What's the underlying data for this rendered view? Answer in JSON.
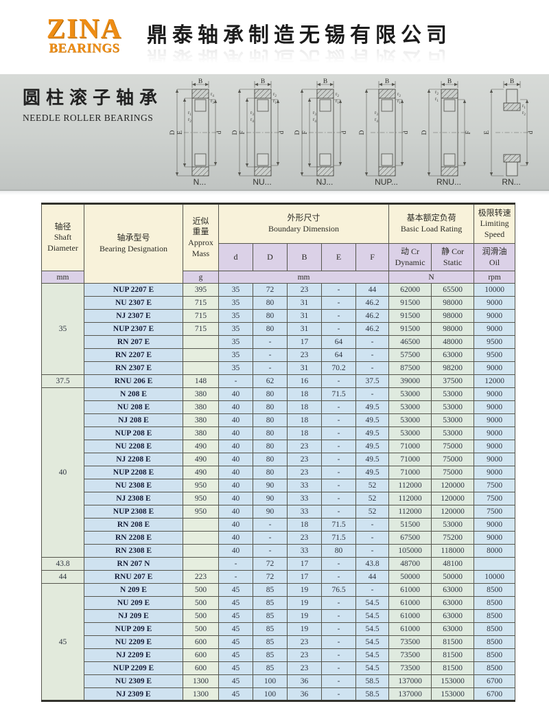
{
  "header": {
    "logo_line1": "ZINA",
    "logo_line2": "BEARINGS",
    "company_name": "鼎泰轴承制造无锡有限公司"
  },
  "banner": {
    "title_zh": "圆柱滚子轴承",
    "title_en": "NEEDLE ROLLER BEARINGS",
    "diagrams": [
      {
        "name": "N...",
        "style": "GEN",
        "top_label": "B",
        "left_labels": [
          "D",
          "E"
        ],
        "right_label": "d",
        "r_labels": [
          "r4",
          "r3",
          "r1",
          "r2"
        ]
      },
      {
        "name": "NU...",
        "style": "GEN",
        "top_label": "B",
        "left_labels": [
          "D",
          "F"
        ],
        "right_label": "d",
        "r_labels": [
          "r2",
          "r1",
          "r3",
          "r4"
        ]
      },
      {
        "name": "NJ...",
        "style": "GEN",
        "top_label": "B",
        "left_labels": [
          "D",
          "F"
        ],
        "right_label": "d",
        "r_labels": [
          "r2",
          "r1",
          "r3",
          "r4"
        ]
      },
      {
        "name": "NUP...",
        "style": "GEN",
        "top_label": "B",
        "left_labels": [
          "D"
        ],
        "right_label": "d",
        "r_labels": [
          "r2",
          "r1",
          "r3",
          "r4"
        ]
      },
      {
        "name": "RNU...",
        "style": "RNU",
        "top_label": "B",
        "left_labels": [
          "D"
        ],
        "right_label": "F",
        "r_labels": [
          "r2",
          "r1"
        ]
      },
      {
        "name": "RN...",
        "style": "RN",
        "top_label": "B",
        "left_labels": [
          "E"
        ],
        "right_label": "d",
        "r_labels": [
          "r1",
          "r2"
        ]
      }
    ]
  },
  "table": {
    "col_headers": {
      "shaft": "轴径\nShaft\nDiameter",
      "designation": "轴承型号\nBearing Designation",
      "mass": "近似\n重量\nApprox\nMass",
      "boundary": "外形尺寸\nBoundary Dimension",
      "load": "基本额定负荷\nBasic Load Rating",
      "speed": "极限转速\nLimiting\nSpeed",
      "dims": [
        "d",
        "D",
        "B",
        "E",
        "F"
      ],
      "dynamic": "动 Cr\nDynamic",
      "static": "静 Cor\nStatic",
      "oil": "润滑油\nOil"
    },
    "units": {
      "shaft": "mm",
      "mass": "g",
      "dims": "mm",
      "load": "N",
      "speed": "rpm"
    },
    "rows": [
      [
        "35",
        "NUP 2207 E",
        "395",
        "35",
        "72",
        "23",
        "-",
        "44",
        "62000",
        "65500",
        "10000"
      ],
      [
        "35",
        "NU 2307 E",
        "715",
        "35",
        "80",
        "31",
        "-",
        "46.2",
        "91500",
        "98000",
        "9000"
      ],
      [
        "35",
        "NJ 2307 E",
        "715",
        "35",
        "80",
        "31",
        "-",
        "46.2",
        "91500",
        "98000",
        "9000"
      ],
      [
        "35",
        "NUP 2307 E",
        "715",
        "35",
        "80",
        "31",
        "-",
        "46.2",
        "91500",
        "98000",
        "9000"
      ],
      [
        "35",
        "RN 207 E",
        "",
        "35",
        "-",
        "17",
        "64",
        "-",
        "46500",
        "48000",
        "9500"
      ],
      [
        "35",
        "RN 2207 E",
        "",
        "35",
        "-",
        "23",
        "64",
        "-",
        "57500",
        "63000",
        "9500"
      ],
      [
        "35",
        "RN 2307 E",
        "",
        "35",
        "-",
        "31",
        "70.2",
        "-",
        "87500",
        "98200",
        "9000"
      ],
      [
        "37.5",
        "RNU 206 E",
        "148",
        "-",
        "62",
        "16",
        "-",
        "37.5",
        "39000",
        "37500",
        "12000"
      ],
      [
        "40",
        "N 208 E",
        "380",
        "40",
        "80",
        "18",
        "71.5",
        "-",
        "53000",
        "53000",
        "9000"
      ],
      [
        "40",
        "NU 208 E",
        "380",
        "40",
        "80",
        "18",
        "-",
        "49.5",
        "53000",
        "53000",
        "9000"
      ],
      [
        "40",
        "NJ 208 E",
        "380",
        "40",
        "80",
        "18",
        "-",
        "49.5",
        "53000",
        "53000",
        "9000"
      ],
      [
        "40",
        "NUP 208 E",
        "380",
        "40",
        "80",
        "18",
        "-",
        "49.5",
        "53000",
        "53000",
        "9000"
      ],
      [
        "40",
        "NU 2208 E",
        "490",
        "40",
        "80",
        "23",
        "-",
        "49.5",
        "71000",
        "75000",
        "9000"
      ],
      [
        "40",
        "NJ 2208 E",
        "490",
        "40",
        "80",
        "23",
        "-",
        "49.5",
        "71000",
        "75000",
        "9000"
      ],
      [
        "40",
        "NUP 2208 E",
        "490",
        "40",
        "80",
        "23",
        "-",
        "49.5",
        "71000",
        "75000",
        "9000"
      ],
      [
        "40",
        "NU 2308 E",
        "950",
        "40",
        "90",
        "33",
        "-",
        "52",
        "112000",
        "120000",
        "7500"
      ],
      [
        "40",
        "NJ 2308 E",
        "950",
        "40",
        "90",
        "33",
        "-",
        "52",
        "112000",
        "120000",
        "7500"
      ],
      [
        "40",
        "NUP 2308 E",
        "950",
        "40",
        "90",
        "33",
        "-",
        "52",
        "112000",
        "120000",
        "7500"
      ],
      [
        "40",
        "RN 208 E",
        "",
        "40",
        "-",
        "18",
        "71.5",
        "-",
        "51500",
        "53000",
        "9000"
      ],
      [
        "40",
        "RN 2208 E",
        "",
        "40",
        "-",
        "23",
        "71.5",
        "-",
        "67500",
        "75200",
        "9000"
      ],
      [
        "40",
        "RN 2308 E",
        "",
        "40",
        "-",
        "33",
        "80",
        "-",
        "105000",
        "118000",
        "8000"
      ],
      [
        "43.8",
        "RN 207 N",
        "",
        "-",
        "72",
        "17",
        "-",
        "43.8",
        "48700",
        "48100",
        ""
      ],
      [
        "44",
        "RNU 207 E",
        "223",
        "-",
        "72",
        "17",
        "-",
        "44",
        "50000",
        "50000",
        "10000"
      ],
      [
        "45",
        "N 209 E",
        "500",
        "45",
        "85",
        "19",
        "76.5",
        "-",
        "61000",
        "63000",
        "8500"
      ],
      [
        "45",
        "NU 209 E",
        "500",
        "45",
        "85",
        "19",
        "-",
        "54.5",
        "61000",
        "63000",
        "8500"
      ],
      [
        "45",
        "NJ 209 E",
        "500",
        "45",
        "85",
        "19",
        "-",
        "54.5",
        "61000",
        "63000",
        "8500"
      ],
      [
        "45",
        "NUP 209 E",
        "500",
        "45",
        "85",
        "19",
        "-",
        "54.5",
        "61000",
        "63000",
        "8500"
      ],
      [
        "45",
        "NU 2209 E",
        "600",
        "45",
        "85",
        "23",
        "-",
        "54.5",
        "73500",
        "81500",
        "8500"
      ],
      [
        "45",
        "NJ 2209 E",
        "600",
        "45",
        "85",
        "23",
        "-",
        "54.5",
        "73500",
        "81500",
        "8500"
      ],
      [
        "45",
        "NUP 2209 E",
        "600",
        "45",
        "85",
        "23",
        "-",
        "54.5",
        "73500",
        "81500",
        "8500"
      ],
      [
        "45",
        "NU 2309 E",
        "1300",
        "45",
        "100",
        "36",
        "-",
        "58.5",
        "137000",
        "153000",
        "6700"
      ],
      [
        "45",
        "NJ 2309 E",
        "1300",
        "45",
        "100",
        "36",
        "-",
        "58.5",
        "137000",
        "153000",
        "6700"
      ]
    ]
  },
  "colors": {
    "logo_orange": "#ee8d15",
    "header_cream": "#f8f2da",
    "header_lavender": "#dbd1e7",
    "row_blue": "#cfe3f1",
    "row_green": "#e2eadc",
    "banner_gray": "#cdd1ce",
    "border_dark": "#55554c"
  }
}
